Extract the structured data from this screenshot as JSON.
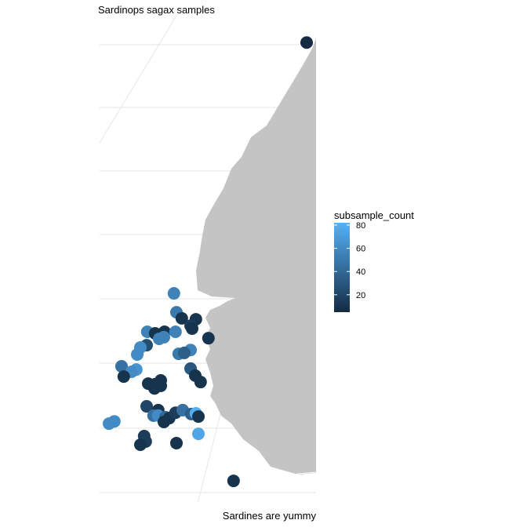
{
  "chart_data": {
    "type": "scatter",
    "title": "Sardinops sagax samples",
    "caption": "Sardines are yummy",
    "xlim": [
      -21.3,
      -14.4
    ],
    "ylim": [
      7.7,
      22.9
    ],
    "x": [
      -14.7,
      -18.93,
      -18.85,
      -18.68,
      -18.23,
      -18.4,
      -18.35,
      -19.78,
      -19.53,
      -19.23,
      -18.88,
      -19.4,
      -19.25,
      -19.8,
      -20.0,
      -17.83,
      -18.4,
      -18.78,
      -18.6,
      -20.1,
      -20.6,
      -20.13,
      -20.28,
      -20.53,
      -18.4,
      -18.25,
      -18.08,
      -19.75,
      -19.53,
      -19.35,
      -19.35,
      -19.55,
      -19.8,
      -19.43,
      -19.58,
      -19.43,
      -19.2,
      -19.08,
      -19.25,
      -18.88,
      -18.65,
      -18.38,
      -18.23,
      -18.15,
      -20.83,
      -21.0,
      -18.15,
      -19.88,
      -19.83,
      -20.0,
      -18.85,
      -17.03
    ],
    "y": [
      22.06,
      14.22,
      13.63,
      13.44,
      13.41,
      13.21,
      13.12,
      13.02,
      12.97,
      13.02,
      13.02,
      12.8,
      12.85,
      12.6,
      12.53,
      12.82,
      12.45,
      12.33,
      12.36,
      12.31,
      11.94,
      11.84,
      11.77,
      11.62,
      11.87,
      11.65,
      11.45,
      11.4,
      11.38,
      11.5,
      11.33,
      11.25,
      10.69,
      10.57,
      10.4,
      10.4,
      10.35,
      10.32,
      10.2,
      10.49,
      10.57,
      10.45,
      10.47,
      10.37,
      10.22,
      10.15,
      9.83,
      9.76,
      9.59,
      9.49,
      9.54,
      8.36
    ],
    "color_values": [
      5,
      55,
      50,
      10,
      10,
      15,
      10,
      55,
      10,
      10,
      55,
      55,
      55,
      25,
      60,
      10,
      55,
      50,
      35,
      60,
      45,
      65,
      60,
      10,
      30,
      10,
      10,
      10,
      10,
      10,
      10,
      10,
      20,
      10,
      45,
      60,
      40,
      10,
      10,
      15,
      45,
      35,
      80,
      10,
      60,
      60,
      75,
      15,
      15,
      10,
      10,
      10
    ],
    "color_scale": {
      "title": "subsample_count",
      "lim": [
        5,
        82
      ],
      "ticks": [
        20,
        40,
        60,
        80
      ],
      "low": "#132b43",
      "high": "#56b1f7"
    },
    "land_color": "#c4c4c4"
  }
}
